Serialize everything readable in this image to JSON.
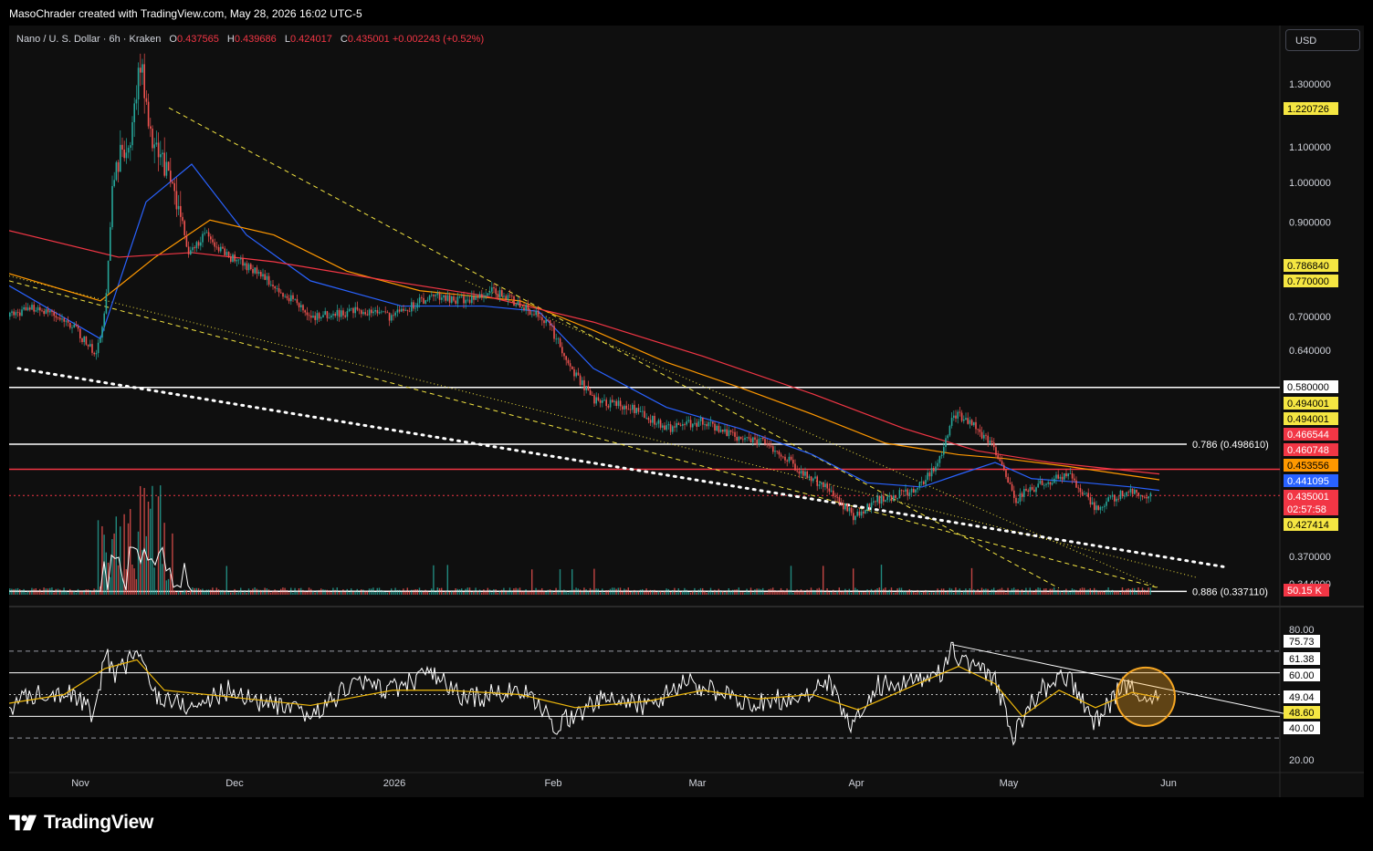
{
  "header": {
    "attribution": "MasoChrader created with TradingView.com, May 28, 2026 16:02 UTC-5"
  },
  "symbol": {
    "name": "Nano / U. S. Dollar · 6h · Kraken",
    "open_label": "O",
    "open": "0.437565",
    "high_label": "H",
    "high": "0.439686",
    "low_label": "L",
    "low": "0.424017",
    "close_label": "C",
    "close": "0.435001",
    "change": "+0.002243 (+0.52%)"
  },
  "currency_button": "USD",
  "footer": {
    "brand": "TradingView"
  },
  "colors": {
    "background": "#0f0f0f",
    "up": "#26a69a",
    "down": "#ef5350",
    "ma_blue": "#2962ff",
    "ma_orange": "#ff9800",
    "ma_red": "#f23645",
    "trend_yellow": "#f5e642",
    "rsi_line": "#ffffff",
    "rsi_ma": "#f0b90b",
    "highlight": "#f5a623"
  },
  "chart_data": [
    {
      "type": "candlestick",
      "title": "Nano / U. S. Dollar · 6h · Kraken",
      "x_tick_labels": [
        "Nov",
        "Dec",
        "2026",
        "Feb",
        "Mar",
        "Apr",
        "May",
        "Jun"
      ],
      "y_tick_labels": [
        "1.300000",
        "1.100000",
        "1.000000",
        "0.900000",
        "0.700000",
        "0.640000",
        "0.370000"
      ],
      "y_scale": "log",
      "price_path": [
        [
          0,
          0.7
        ],
        [
          30,
          0.72
        ],
        [
          70,
          0.68
        ],
        [
          95,
          0.63
        ],
        [
          105,
          0.72
        ],
        [
          115,
          1.05
        ],
        [
          130,
          1.1
        ],
        [
          143,
          1.38
        ],
        [
          155,
          1.1
        ],
        [
          168,
          1.05
        ],
        [
          180,
          0.99
        ],
        [
          195,
          0.83
        ],
        [
          215,
          0.87
        ],
        [
          240,
          0.82
        ],
        [
          260,
          0.8
        ],
        [
          290,
          0.76
        ],
        [
          330,
          0.7
        ],
        [
          380,
          0.71
        ],
        [
          420,
          0.7
        ],
        [
          460,
          0.74
        ],
        [
          500,
          0.73
        ],
        [
          530,
          0.75
        ],
        [
          560,
          0.72
        ],
        [
          590,
          0.69
        ],
        [
          610,
          0.62
        ],
        [
          640,
          0.56
        ],
        [
          680,
          0.55
        ],
        [
          720,
          0.52
        ],
        [
          760,
          0.53
        ],
        [
          790,
          0.51
        ],
        [
          830,
          0.5
        ],
        [
          860,
          0.47
        ],
        [
          900,
          0.44
        ],
        [
          925,
          0.41
        ],
        [
          950,
          0.43
        ],
        [
          990,
          0.44
        ],
        [
          1015,
          0.47
        ],
        [
          1035,
          0.54
        ],
        [
          1060,
          0.52
        ],
        [
          1085,
          0.48
        ],
        [
          1100,
          0.43
        ],
        [
          1130,
          0.45
        ],
        [
          1160,
          0.46
        ],
        [
          1190,
          0.42
        ],
        [
          1220,
          0.44
        ],
        [
          1250,
          0.435
        ]
      ],
      "moving_averages": [
        {
          "color": "blue",
          "path": [
            [
              0,
              0.76
            ],
            [
              100,
              0.66
            ],
            [
              150,
              0.95
            ],
            [
              200,
              1.05
            ],
            [
              260,
              0.87
            ],
            [
              330,
              0.77
            ],
            [
              430,
              0.72
            ],
            [
              520,
              0.72
            ],
            [
              580,
              0.71
            ],
            [
              640,
              0.61
            ],
            [
              720,
              0.55
            ],
            [
              800,
              0.52
            ],
            [
              880,
              0.485
            ],
            [
              940,
              0.45
            ],
            [
              1000,
              0.445
            ],
            [
              1040,
              0.46
            ],
            [
              1080,
              0.475
            ],
            [
              1120,
              0.455
            ],
            [
              1180,
              0.45
            ],
            [
              1230,
              0.445
            ],
            [
              1260,
              0.441
            ]
          ]
        },
        {
          "color": "orange",
          "path": [
            [
              0,
              0.785
            ],
            [
              100,
              0.73
            ],
            [
              160,
              0.82
            ],
            [
              220,
              0.905
            ],
            [
              290,
              0.87
            ],
            [
              370,
              0.79
            ],
            [
              450,
              0.75
            ],
            [
              560,
              0.73
            ],
            [
              640,
              0.675
            ],
            [
              720,
              0.62
            ],
            [
              800,
              0.58
            ],
            [
              880,
              0.54
            ],
            [
              960,
              0.5
            ],
            [
              1040,
              0.485
            ],
            [
              1090,
              0.48
            ],
            [
              1160,
              0.47
            ],
            [
              1260,
              0.4536
            ]
          ]
        },
        {
          "color": "red",
          "path": [
            [
              0,
              0.88
            ],
            [
              120,
              0.82
            ],
            [
              200,
              0.83
            ],
            [
              290,
              0.81
            ],
            [
              400,
              0.775
            ],
            [
              520,
              0.74
            ],
            [
              640,
              0.69
            ],
            [
              760,
              0.63
            ],
            [
              880,
              0.57
            ],
            [
              980,
              0.52
            ],
            [
              1060,
              0.49
            ],
            [
              1140,
              0.475
            ],
            [
              1260,
              0.4607
            ]
          ]
        }
      ],
      "horizontal_levels": [
        {
          "price": 0.58,
          "color": "white"
        },
        {
          "price": 0.4986,
          "color": "white",
          "label": "0.786 (0.498610)"
        },
        {
          "price": 0.4665,
          "color": "red"
        },
        {
          "price": 0.435,
          "color": "red",
          "style": "dotted"
        },
        {
          "price": 0.3371,
          "color": "white",
          "label": "0.886 (0.337110)"
        }
      ],
      "trendlines": [
        {
          "color": "yellow",
          "style": "dashed",
          "from": [
            175,
            1.22
          ],
          "to": [
            1150,
            0.34
          ]
        },
        {
          "color": "yellow",
          "style": "dashed",
          "from": [
            0,
            0.77
          ],
          "to": [
            1260,
            0.34
          ]
        },
        {
          "color": "yellow",
          "style": "dotted",
          "from": [
            0,
            0.78
          ],
          "to": [
            1300,
            0.35
          ]
        },
        {
          "color": "yellow",
          "style": "dotted",
          "from": [
            500,
            0.77
          ],
          "to": [
            1260,
            0.34
          ]
        },
        {
          "color": "white",
          "style": "dotted",
          "from": [
            10,
            0.61
          ],
          "to": [
            1330,
            0.36
          ]
        }
      ],
      "price_labels": [
        {
          "text": "1.220726",
          "bg": "#f5e642",
          "fg": "#000"
        },
        {
          "text": "0.786840",
          "bg": "#f5e642",
          "fg": "#000"
        },
        {
          "text": "0.770000",
          "bg": "#f5e642",
          "fg": "#000"
        },
        {
          "text": "0.580000",
          "bg": "#ffffff",
          "fg": "#000"
        },
        {
          "text": "0.494001",
          "bg": "#f5e642",
          "fg": "#000"
        },
        {
          "text": "0.494001",
          "bg": "#f5e642",
          "fg": "#000"
        },
        {
          "text": "0.466544",
          "bg": "#f23645",
          "fg": "#fff"
        },
        {
          "text": "0.460748",
          "bg": "#f23645",
          "fg": "#fff"
        },
        {
          "text": "0.453556",
          "bg": "#ff9800",
          "fg": "#000"
        },
        {
          "text": "0.441095",
          "bg": "#2962ff",
          "fg": "#fff"
        },
        {
          "text": "0.435001",
          "bg": "#f23645",
          "fg": "#fff"
        },
        {
          "text": "02:57:58",
          "bg": "#f23645",
          "fg": "#fff"
        },
        {
          "text": "0.427414",
          "bg": "#f5e642",
          "fg": "#000"
        },
        {
          "text": "50.15 K",
          "bg": "#f23645",
          "fg": "#fff"
        }
      ],
      "partial_tick": "0.344000"
    },
    {
      "type": "line",
      "title": "RSI",
      "y_tick_labels": [
        "80.00",
        "20.00"
      ],
      "ylim": [
        20,
        80
      ],
      "levels": [
        {
          "value": 70,
          "style": "dashed"
        },
        {
          "value": 60,
          "style": "solid"
        },
        {
          "value": 50,
          "style": "dotted"
        },
        {
          "value": 40,
          "style": "solid"
        },
        {
          "value": 30,
          "style": "dashed"
        }
      ],
      "rsi_path": [
        [
          0,
          45
        ],
        [
          40,
          52
        ],
        [
          70,
          50
        ],
        [
          95,
          40
        ],
        [
          105,
          72
        ],
        [
          115,
          58
        ],
        [
          140,
          70
        ],
        [
          160,
          50
        ],
        [
          200,
          44
        ],
        [
          240,
          52
        ],
        [
          280,
          46
        ],
        [
          330,
          40
        ],
        [
          380,
          56
        ],
        [
          420,
          52
        ],
        [
          460,
          60
        ],
        [
          500,
          48
        ],
        [
          560,
          52
        ],
        [
          600,
          36
        ],
        [
          650,
          48
        ],
        [
          700,
          45
        ],
        [
          740,
          56
        ],
        [
          780,
          50
        ],
        [
          820,
          46
        ],
        [
          860,
          49
        ],
        [
          900,
          55
        ],
        [
          920,
          34
        ],
        [
          950,
          54
        ],
        [
          990,
          57
        ],
        [
          1020,
          60
        ],
        [
          1033,
          70
        ],
        [
          1060,
          62
        ],
        [
          1080,
          56
        ],
        [
          1100,
          32
        ],
        [
          1130,
          52
        ],
        [
          1160,
          58
        ],
        [
          1190,
          37
        ],
        [
          1220,
          54
        ],
        [
          1245,
          49
        ],
        [
          1260,
          49
        ]
      ],
      "rsi_ma_path": [
        [
          0,
          46
        ],
        [
          60,
          50
        ],
        [
          105,
          62
        ],
        [
          140,
          66
        ],
        [
          170,
          52
        ],
        [
          240,
          49
        ],
        [
          330,
          45
        ],
        [
          420,
          52
        ],
        [
          480,
          52
        ],
        [
          560,
          50
        ],
        [
          620,
          44
        ],
        [
          700,
          47
        ],
        [
          760,
          52
        ],
        [
          820,
          48
        ],
        [
          880,
          50
        ],
        [
          930,
          43
        ],
        [
          990,
          54
        ],
        [
          1040,
          63
        ],
        [
          1080,
          55
        ],
        [
          1110,
          40
        ],
        [
          1150,
          52
        ],
        [
          1190,
          44
        ],
        [
          1230,
          51
        ],
        [
          1260,
          48.6
        ]
      ],
      "trendline": {
        "from": [
          1033,
          73
        ],
        "to": [
          1400,
          41
        ]
      },
      "value_labels": [
        {
          "text": "75.73",
          "bg": "#ffffff",
          "fg": "#000"
        },
        {
          "text": "61.38",
          "bg": "#ffffff",
          "fg": "#000"
        },
        {
          "text": "60.00",
          "bg": "#ffffff",
          "fg": "#000"
        },
        {
          "text": "49.04",
          "bg": "#ffffff",
          "fg": "#000"
        },
        {
          "text": "48.60",
          "bg": "#f5e642",
          "fg": "#000"
        },
        {
          "text": "40.00",
          "bg": "#ffffff",
          "fg": "#000"
        }
      ],
      "highlight_circle": {
        "center": [
          1245,
          49
        ],
        "color": "orange"
      }
    }
  ]
}
